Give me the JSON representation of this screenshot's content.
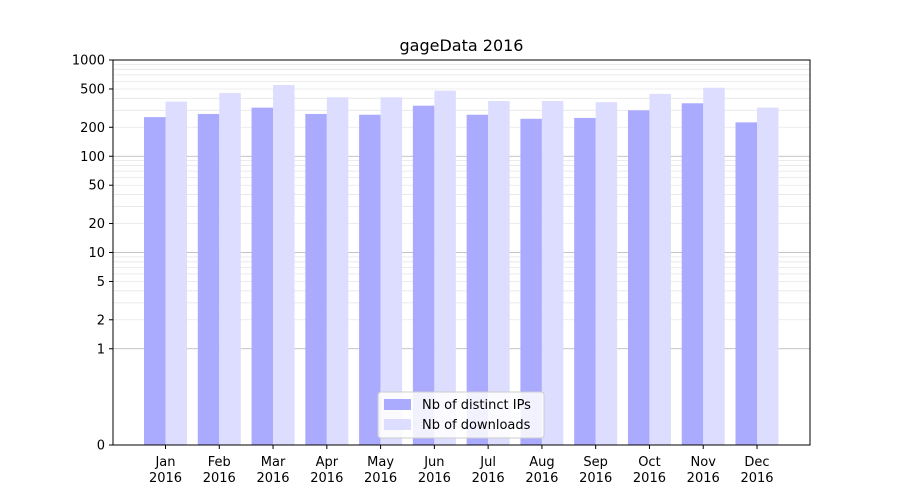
{
  "chart_data": {
    "type": "bar",
    "title": "gageData 2016",
    "xlabel": "",
    "ylabel": "",
    "y_scale": "symlog",
    "ylim": [
      0,
      1000
    ],
    "y_ticks": [
      0,
      1,
      2,
      5,
      10,
      20,
      50,
      100,
      200,
      500,
      1000
    ],
    "grid": true,
    "legend_position": "lower center",
    "categories": [
      [
        "Jan",
        "2016"
      ],
      [
        "Feb",
        "2016"
      ],
      [
        "Mar",
        "2016"
      ],
      [
        "Apr",
        "2016"
      ],
      [
        "May",
        "2016"
      ],
      [
        "Jun",
        "2016"
      ],
      [
        "Jul",
        "2016"
      ],
      [
        "Aug",
        "2016"
      ],
      [
        "Sep",
        "2016"
      ],
      [
        "Oct",
        "2016"
      ],
      [
        "Nov",
        "2016"
      ],
      [
        "Dec",
        "2016"
      ]
    ],
    "series": [
      {
        "name": "Nb of distinct IPs",
        "color": "#aaaaff",
        "values": [
          255,
          275,
          320,
          275,
          270,
          335,
          270,
          245,
          250,
          300,
          355,
          225
        ]
      },
      {
        "name": "Nb of downloads",
        "color": "#ddddff",
        "values": [
          370,
          455,
          550,
          410,
          410,
          480,
          375,
          375,
          365,
          445,
          515,
          320
        ]
      }
    ]
  }
}
